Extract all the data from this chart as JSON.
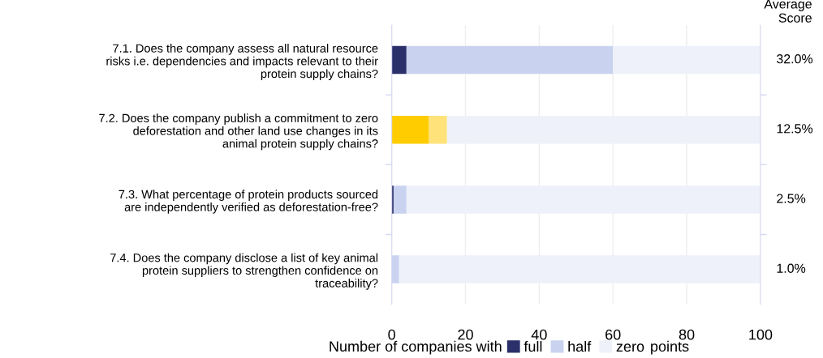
{
  "chart_data": {
    "type": "bar",
    "orientation": "horizontal",
    "stacked": true,
    "categories": [
      "7.1. Does the company assess all natural resource\nrisks i.e. dependencies and impacts relevant to their\nprotein supply chains?",
      "7.2. Does the company publish a commitment to zero\ndeforestation and other land use changes in its\nanimal protein supply chains?",
      "7.3. What percentage of protein products sourced\nare independently verified as deforestation-free?",
      "7.4. Does the company disclose a list of key animal\nprotein suppliers to strengthen confidence on\ntraceability?"
    ],
    "series": [
      {
        "name": "full",
        "color": "#2b306b",
        "colors": [
          "#2b306b",
          "#ffcc00",
          "#2b306b",
          "#2b306b"
        ],
        "values": [
          4,
          10,
          0.5,
          0
        ]
      },
      {
        "name": "half",
        "color": "#c9d3f0",
        "colors": [
          "#c9d3f0",
          "#ffe27a",
          "#c9d3f0",
          "#c9d3f0"
        ],
        "values": [
          56,
          5,
          3.5,
          2
        ]
      },
      {
        "name": "zero",
        "color": "#eef1fa",
        "values": [
          40,
          85,
          96,
          98
        ]
      }
    ],
    "xlim": [
      0,
      100
    ],
    "xticks": [
      0,
      20,
      40,
      60,
      80,
      100
    ],
    "grid": "x",
    "legend": "bottom",
    "xlabel": "Number of companies with",
    "y2label": "Average\nScore",
    "annotations": [
      "points",
      "32.0%",
      "12.5%",
      "2.5%",
      "1.0%"
    ]
  }
}
